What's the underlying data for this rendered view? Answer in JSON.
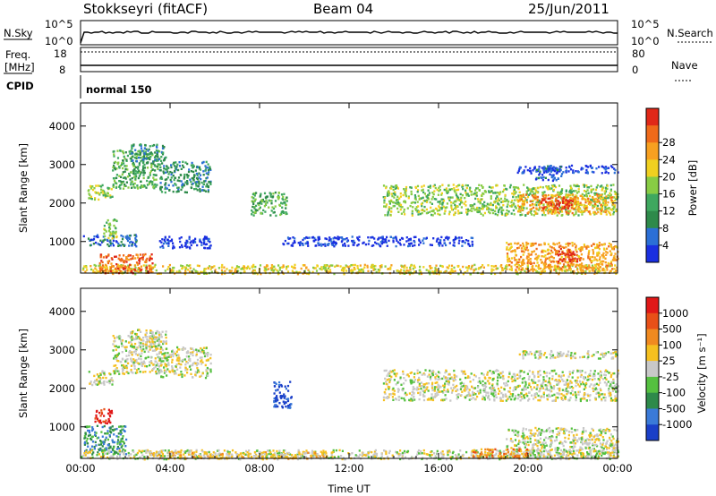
{
  "header": {
    "station": "Stokkseyri (fitACF)",
    "beam": "Beam 04",
    "date": "25/Jun/2011"
  },
  "strip_panels": {
    "nsky_label": "N.Sky",
    "nsky_ticks": [
      "10^5",
      "10^0"
    ],
    "nsearch_label": "N.Search",
    "nsearch_ticks": [
      "10^5",
      "10^0"
    ],
    "freq_label": "Freq.",
    "freq_unit": "[MHz]",
    "freq_ticks": [
      "18",
      "8"
    ],
    "nave_label": "Nave",
    "nave_ticks": [
      "80",
      "0"
    ],
    "cpid_label": "CPID",
    "cpid_value": "normal 150"
  },
  "chart_data": [
    {
      "type": "heatmap",
      "name": "power",
      "ylabel": "Slant Range [km]",
      "yticks": [
        1000,
        2000,
        3000,
        4000
      ],
      "ylim": [
        180,
        4600
      ],
      "xlim": [
        0,
        24
      ],
      "xticks": [
        "00:00",
        "04:00",
        "08:00",
        "12:00",
        "16:00",
        "20:00",
        "00:00"
      ],
      "colorbar": {
        "label": "Power [dB]",
        "ticks": [
          "4",
          "8",
          "12",
          "16",
          "20",
          "24",
          "28"
        ],
        "colors": [
          "#1a2fe0",
          "#2b6fd6",
          "#2e8a4a",
          "#3fa85f",
          "#88cc44",
          "#f0d020",
          "#f7a020",
          "#ef6a1a",
          "#e02818"
        ]
      },
      "regions": [
        {
          "t0": 0.3,
          "t1": 1.4,
          "r0": 2100,
          "r1": 2500,
          "level": 4
        },
        {
          "t0": 1.4,
          "t1": 3.5,
          "r0": 2400,
          "r1": 3400,
          "level": 3
        },
        {
          "t0": 2.2,
          "t1": 3.8,
          "r0": 3100,
          "r1": 3550,
          "level": 2
        },
        {
          "t0": 3.5,
          "t1": 5.8,
          "r0": 2300,
          "r1": 3100,
          "level": 2
        },
        {
          "t0": 7.6,
          "t1": 9.2,
          "r0": 1700,
          "r1": 2300,
          "level": 3
        },
        {
          "t0": 0.1,
          "t1": 2.5,
          "r0": 900,
          "r1": 1200,
          "level": 1
        },
        {
          "t0": 1.0,
          "t1": 1.6,
          "r0": 1100,
          "r1": 1600,
          "level": 4
        },
        {
          "t0": 3.5,
          "t1": 5.8,
          "r0": 850,
          "r1": 1150,
          "level": 0
        },
        {
          "t0": 9.0,
          "t1": 17.5,
          "r0": 900,
          "r1": 1150,
          "level": 0
        },
        {
          "t0": 0.0,
          "t1": 24.0,
          "r0": 180,
          "r1": 420,
          "level": 5
        },
        {
          "t0": 0.8,
          "t1": 3.2,
          "r0": 200,
          "r1": 700,
          "level": 7
        },
        {
          "t0": 13.5,
          "t1": 24.0,
          "r0": 1700,
          "r1": 2500,
          "level": 4
        },
        {
          "t0": 19.5,
          "t1": 23.8,
          "r0": 1750,
          "r1": 2250,
          "level": 6
        },
        {
          "t0": 20.5,
          "t1": 22.0,
          "r0": 1850,
          "r1": 2150,
          "level": 8
        },
        {
          "t0": 19.0,
          "t1": 24.0,
          "r0": 250,
          "r1": 1000,
          "level": 6
        },
        {
          "t0": 21.2,
          "t1": 22.2,
          "r0": 500,
          "r1": 850,
          "level": 8
        },
        {
          "t0": 19.5,
          "t1": 24.0,
          "r0": 2800,
          "r1": 3000,
          "level": 0
        },
        {
          "t0": 20.3,
          "t1": 21.5,
          "r0": 2600,
          "r1": 3000,
          "level": 1
        }
      ]
    },
    {
      "type": "heatmap",
      "name": "velocity",
      "ylabel": "Slant Range [km]",
      "yticks": [
        1000,
        2000,
        3000,
        4000
      ],
      "ylim": [
        180,
        4600
      ],
      "xlim": [
        0,
        24
      ],
      "xticks": [
        "00:00",
        "04:00",
        "08:00",
        "12:00",
        "16:00",
        "20:00",
        "00:00"
      ],
      "xlabel": "Time UT",
      "colorbar": {
        "label": "Velocity [m s⁻¹]",
        "ticks": [
          "1000",
          "500",
          "100",
          "25",
          "-25",
          "-100",
          "-500",
          "-1000"
        ],
        "colors": [
          "#1a3fc8",
          "#3a7ad8",
          "#2e8a4a",
          "#55c040",
          "#c8c8c8",
          "#f5c020",
          "#f08a20",
          "#e85018",
          "#e01818"
        ]
      },
      "regions": [
        {
          "t0": 0.3,
          "t1": 1.4,
          "r0": 2100,
          "r1": 2500,
          "level": 4
        },
        {
          "t0": 1.4,
          "t1": 3.5,
          "r0": 2400,
          "r1": 3400,
          "level": 4
        },
        {
          "t0": 2.2,
          "t1": 3.8,
          "r0": 3100,
          "r1": 3550,
          "level": 4
        },
        {
          "t0": 3.5,
          "t1": 5.8,
          "r0": 2300,
          "r1": 3100,
          "level": 4
        },
        {
          "t0": 8.6,
          "t1": 9.4,
          "r0": 1500,
          "r1": 2200,
          "level": 0
        },
        {
          "t0": 0.6,
          "t1": 1.4,
          "r0": 1100,
          "r1": 1500,
          "level": 8
        },
        {
          "t0": 0.1,
          "t1": 2.0,
          "r0": 300,
          "r1": 1050,
          "level": 2
        },
        {
          "t0": 0.0,
          "t1": 24.0,
          "r0": 180,
          "r1": 420,
          "level": 4
        },
        {
          "t0": 3.0,
          "t1": 11.0,
          "r0": 190,
          "r1": 380,
          "level": 5
        },
        {
          "t0": 13.5,
          "t1": 24.0,
          "r0": 1700,
          "r1": 2500,
          "level": 4
        },
        {
          "t0": 19.0,
          "t1": 24.0,
          "r0": 250,
          "r1": 1000,
          "level": 4
        },
        {
          "t0": 17.5,
          "t1": 20.0,
          "r0": 200,
          "r1": 450,
          "level": 6
        },
        {
          "t0": 19.5,
          "t1": 24.0,
          "r0": 2800,
          "r1": 3000,
          "level": 4
        }
      ]
    }
  ]
}
